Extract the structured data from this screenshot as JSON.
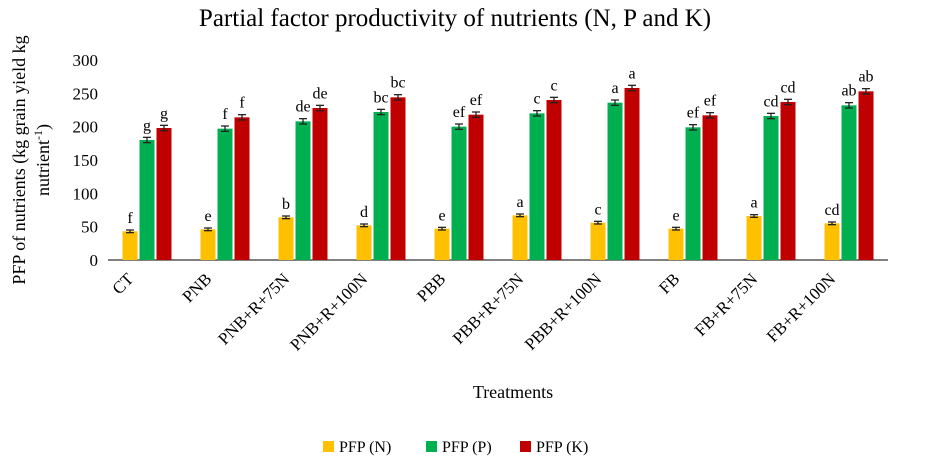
{
  "chart_data": {
    "type": "bar",
    "title": "Partial factor productivity of nutrients (N, P and K)",
    "xlabel": "Treatments",
    "ylabel_line1": "PFP of nutrients (kg grain yield kg",
    "ylabel_line2": "nutrient",
    "ylabel_superscript": "-1",
    "ylabel_close": ")",
    "ylim": [
      0,
      300
    ],
    "yticks": [
      "0",
      "50",
      "100",
      "150",
      "200",
      "250",
      "300"
    ],
    "ytick_values": [
      0,
      50,
      100,
      150,
      200,
      250,
      300
    ],
    "grid": false,
    "legend_position": "bottom",
    "categories": [
      "CT",
      "PNB",
      "PNB+R+75N",
      "PNB+R+100N",
      "PBB",
      "PBB+R+75N",
      "PBB+R+100N",
      "FB",
      "FB+R+75N",
      "FB+R+100N"
    ],
    "series": [
      {
        "name": "PFP (N)",
        "color": "#FFC000",
        "values": [
          43,
          46,
          64,
          52,
          47,
          67,
          56,
          47,
          66,
          55
        ],
        "errors": [
          2,
          2,
          2,
          2,
          2,
          2,
          2,
          2,
          2,
          2
        ],
        "labels": [
          "f",
          "e",
          "b",
          "d",
          "e",
          "a",
          "c",
          "e",
          "a",
          "cd"
        ]
      },
      {
        "name": "PFP (P)",
        "color": "#00B050",
        "values": [
          180,
          197,
          208,
          222,
          200,
          220,
          236,
          199,
          216,
          232
        ],
        "errors": [
          4,
          4,
          4,
          4,
          4,
          4,
          4,
          4,
          4,
          4
        ],
        "labels": [
          "g",
          "f",
          "de",
          "bc",
          "ef",
          "c",
          "a",
          "ef",
          "cd",
          "ab"
        ]
      },
      {
        "name": "PFP (K)",
        "color": "#C00000",
        "values": [
          198,
          214,
          228,
          244,
          218,
          240,
          258,
          217,
          237,
          253
        ],
        "errors": [
          4,
          4,
          4,
          4,
          4,
          4,
          4,
          4,
          4,
          4
        ],
        "labels": [
          "g",
          "f",
          "de",
          "bc",
          "ef",
          "c",
          "a",
          "ef",
          "cd",
          "ab"
        ]
      }
    ]
  }
}
